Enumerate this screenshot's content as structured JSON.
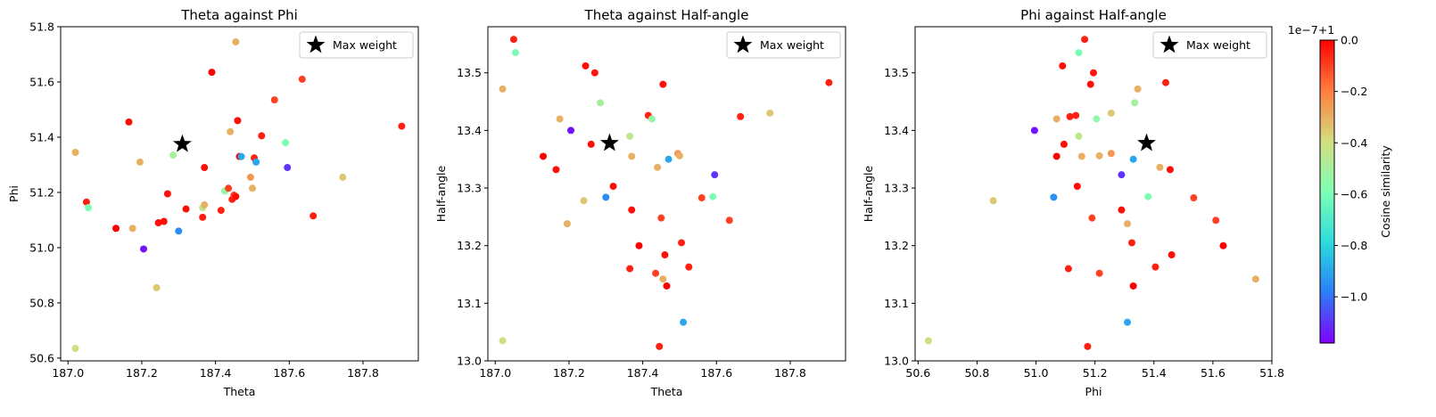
{
  "colors": {
    "max_marker": "#000000",
    "colormap": [
      "#8000ff",
      "#2c7ef7",
      "#2adddd",
      "#80ffb4",
      "#d4dd80",
      "#ff7e41",
      "#ff0000"
    ]
  },
  "legend_label": "Max weight",
  "colorbar": {
    "label": "Cosine similarity",
    "offset_text": "1e−7+1",
    "ticks": [
      0.0,
      -0.2,
      -0.4,
      -0.6,
      -0.8,
      -1.0
    ],
    "tick_labels": [
      "0.0",
      "−0.2",
      "−0.4",
      "−0.6",
      "−0.8",
      "−1.0"
    ],
    "range": [
      -1.18,
      0.0
    ]
  },
  "chart_data": [
    {
      "type": "scatter",
      "title": "Theta against Phi",
      "xlabel": "Theta",
      "ylabel": "Phi",
      "xlim": [
        186.98,
        187.95
      ],
      "ylim": [
        50.59,
        51.8
      ],
      "xticks": [
        187.0,
        187.2,
        187.4,
        187.6,
        187.8
      ],
      "xtick_labels": [
        "187.0",
        "187.2",
        "187.4",
        "187.6",
        "187.8"
      ],
      "yticks": [
        50.6,
        50.8,
        51.0,
        51.2,
        51.4,
        51.6,
        51.8
      ],
      "ytick_labels": [
        "50.6",
        "50.8",
        "51.0",
        "51.2",
        "51.4",
        "51.6",
        "51.8"
      ],
      "legend": "top-right",
      "max_point": {
        "x": 187.31,
        "y": 51.375
      }
    },
    {
      "type": "scatter",
      "title": "Theta against Half-angle",
      "xlabel": "Theta",
      "ylabel": "Half-angle",
      "xlim": [
        186.98,
        187.95
      ],
      "ylim": [
        13.0,
        13.58
      ],
      "xticks": [
        187.0,
        187.2,
        187.4,
        187.6,
        187.8
      ],
      "xtick_labels": [
        "187.0",
        "187.2",
        "187.4",
        "187.6",
        "187.8"
      ],
      "yticks": [
        13.0,
        13.1,
        13.2,
        13.3,
        13.4,
        13.5
      ],
      "ytick_labels": [
        "13.0",
        "13.1",
        "13.2",
        "13.3",
        "13.4",
        "13.5"
      ],
      "legend": "top-right",
      "max_point": {
        "x": 187.31,
        "y": 13.378
      }
    },
    {
      "type": "scatter",
      "title": "Phi against Half-angle",
      "xlabel": "Phi",
      "ylabel": "Half-angle",
      "xlim": [
        50.59,
        51.8
      ],
      "ylim": [
        13.0,
        13.58
      ],
      "xticks": [
        50.6,
        50.8,
        51.0,
        51.2,
        51.4,
        51.6,
        51.8
      ],
      "xtick_labels": [
        "50.6",
        "50.8",
        "51.0",
        "51.2",
        "51.4",
        "51.6",
        "51.8"
      ],
      "yticks": [
        13.0,
        13.1,
        13.2,
        13.3,
        13.4,
        13.5
      ],
      "ytick_labels": [
        "13.0",
        "13.1",
        "13.2",
        "13.3",
        "13.4",
        "13.5"
      ],
      "legend": "top-right",
      "max_point": {
        "x": 51.375,
        "y": 13.378
      }
    }
  ],
  "points": [
    {
      "theta": 187.02,
      "phi": 50.635,
      "half": 13.035,
      "c": -0.4
    },
    {
      "theta": 187.02,
      "phi": 51.345,
      "half": 13.472,
      "c": -0.3
    },
    {
      "theta": 187.05,
      "phi": 51.165,
      "half": 13.558,
      "c": -0.05
    },
    {
      "theta": 187.055,
      "phi": 51.145,
      "half": 13.535,
      "c": -0.6
    },
    {
      "theta": 187.13,
      "phi": 51.07,
      "half": 13.355,
      "c": 0.0
    },
    {
      "theta": 187.165,
      "phi": 51.455,
      "half": 13.332,
      "c": -0.02
    },
    {
      "theta": 187.175,
      "phi": 51.07,
      "half": 13.42,
      "c": -0.3
    },
    {
      "theta": 187.195,
      "phi": 51.31,
      "half": 13.238,
      "c": -0.3
    },
    {
      "theta": 187.205,
      "phi": 50.995,
      "half": 13.4,
      "c": -1.15
    },
    {
      "theta": 187.24,
      "phi": 50.855,
      "half": 13.278,
      "c": -0.35
    },
    {
      "theta": 187.245,
      "phi": 51.09,
      "half": 13.512,
      "c": -0.02
    },
    {
      "theta": 187.26,
      "phi": 51.095,
      "half": 13.376,
      "c": -0.02
    },
    {
      "theta": 187.27,
      "phi": 51.195,
      "half": 13.5,
      "c": -0.03
    },
    {
      "theta": 187.285,
      "phi": 51.335,
      "half": 13.448,
      "c": -0.5
    },
    {
      "theta": 187.3,
      "phi": 51.06,
      "half": 13.284,
      "c": -0.95
    },
    {
      "theta": 187.32,
      "phi": 51.14,
      "half": 13.303,
      "c": -0.02
    },
    {
      "theta": 187.365,
      "phi": 51.11,
      "half": 13.16,
      "c": -0.05
    },
    {
      "theta": 187.365,
      "phi": 51.145,
      "half": 13.39,
      "c": -0.45
    },
    {
      "theta": 187.37,
      "phi": 51.29,
      "half": 13.262,
      "c": -0.02
    },
    {
      "theta": 187.37,
      "phi": 51.155,
      "half": 13.355,
      "c": -0.3
    },
    {
      "theta": 187.39,
      "phi": 51.635,
      "half": 13.2,
      "c": 0.0
    },
    {
      "theta": 187.415,
      "phi": 51.135,
      "half": 13.426,
      "c": -0.05
    },
    {
      "theta": 187.425,
      "phi": 51.205,
      "half": 13.42,
      "c": -0.55
    },
    {
      "theta": 187.435,
      "phi": 51.215,
      "half": 13.152,
      "c": -0.1
    },
    {
      "theta": 187.44,
      "phi": 51.42,
      "half": 13.336,
      "c": -0.3
    },
    {
      "theta": 187.445,
      "phi": 51.175,
      "half": 13.025,
      "c": -0.05
    },
    {
      "theta": 187.45,
      "phi": 51.19,
      "half": 13.248,
      "c": -0.1
    },
    {
      "theta": 187.455,
      "phi": 51.745,
      "half": 13.142,
      "c": -0.3
    },
    {
      "theta": 187.455,
      "phi": 51.185,
      "half": 13.48,
      "c": -0.02
    },
    {
      "theta": 187.46,
      "phi": 51.46,
      "half": 13.184,
      "c": -0.02
    },
    {
      "theta": 187.465,
      "phi": 51.33,
      "half": 13.13,
      "c": 0.0
    },
    {
      "theta": 187.47,
      "phi": 51.33,
      "half": 13.35,
      "c": -0.9
    },
    {
      "theta": 187.495,
      "phi": 51.255,
      "half": 13.36,
      "c": -0.25
    },
    {
      "theta": 187.5,
      "phi": 51.215,
      "half": 13.356,
      "c": -0.3
    },
    {
      "theta": 187.505,
      "phi": 51.325,
      "half": 13.205,
      "c": -0.05
    },
    {
      "theta": 187.51,
      "phi": 51.31,
      "half": 13.067,
      "c": -0.9
    },
    {
      "theta": 187.525,
      "phi": 51.405,
      "half": 13.163,
      "c": -0.05
    },
    {
      "theta": 187.56,
      "phi": 51.535,
      "half": 13.283,
      "c": -0.1
    },
    {
      "theta": 187.59,
      "phi": 51.38,
      "half": 13.285,
      "c": -0.6
    },
    {
      "theta": 187.595,
      "phi": 51.29,
      "half": 13.323,
      "c": -1.1
    },
    {
      "theta": 187.635,
      "phi": 51.61,
      "half": 13.244,
      "c": -0.1
    },
    {
      "theta": 187.665,
      "phi": 51.115,
      "half": 13.424,
      "c": -0.05
    },
    {
      "theta": 187.745,
      "phi": 51.255,
      "half": 13.43,
      "c": -0.35
    },
    {
      "theta": 187.905,
      "phi": 51.44,
      "half": 13.483,
      "c": -0.05
    }
  ]
}
